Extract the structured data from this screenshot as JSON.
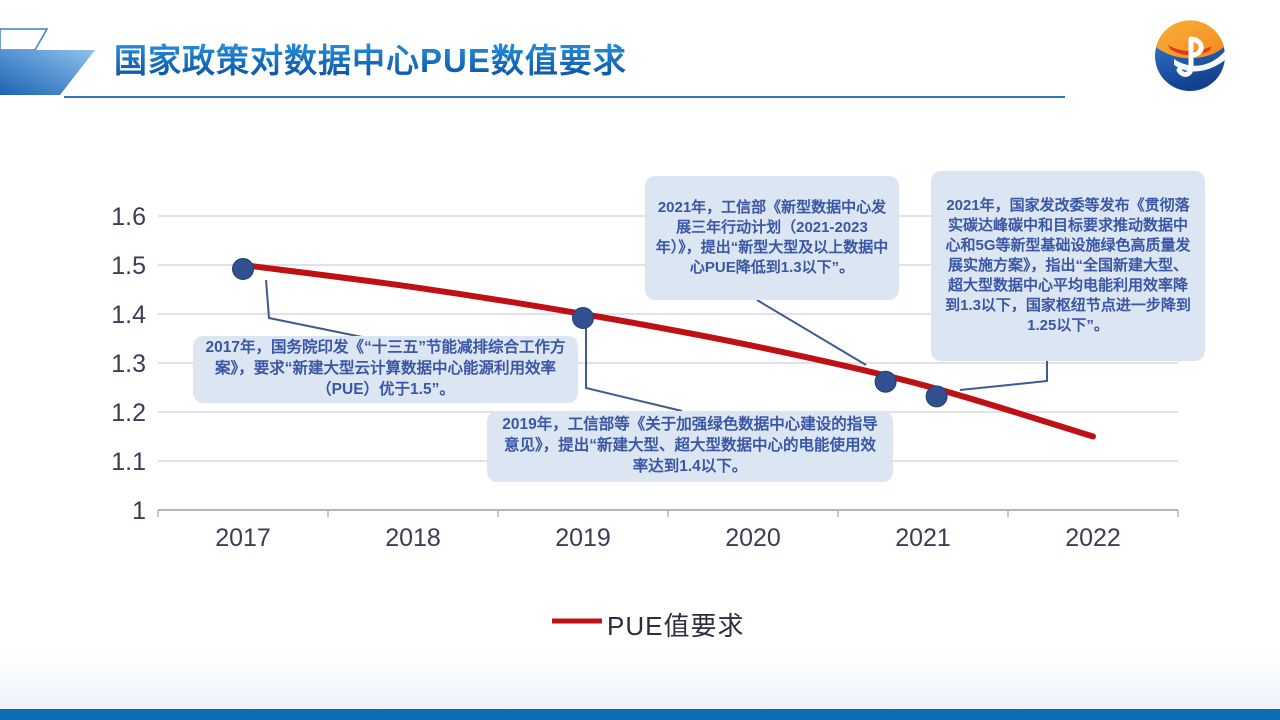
{
  "slide": {
    "title": "国家政策对数据中心PUE数值要求"
  },
  "chart_data": {
    "type": "line",
    "title": "",
    "xlabel": "",
    "ylabel": "",
    "categories": [
      "2017",
      "2018",
      "2019",
      "2020",
      "2021",
      "2022"
    ],
    "series": [
      {
        "name": "PUE值要求",
        "values": [
          1.5,
          1.455,
          1.4,
          1.335,
          1.255,
          1.15
        ]
      }
    ],
    "markers": [
      {
        "year": 2017,
        "value": 1.5
      },
      {
        "year": 2019,
        "value": 1.4
      },
      {
        "year": 2020.78,
        "value": 1.27
      },
      {
        "year": 2021.08,
        "value": 1.24
      }
    ],
    "ylim": [
      1.0,
      1.6
    ],
    "yticks": [
      "1.6",
      "1.5",
      "1.4",
      "1.3",
      "1.2",
      "1.1",
      "1"
    ],
    "grid": true,
    "legend_position": "bottom",
    "line_color": "#bf1016",
    "marker_color": "#30508f",
    "grid_color": "#d9d9de",
    "axis_color": "#b3b3bb"
  },
  "legend": {
    "label": "PUE值要求"
  },
  "callouts": [
    {
      "id": "2017",
      "text": "2017年，国务院印发《“十三五”节能减排综合工作方案》，要求“新建大型云计算数据中心能源利用效率（PUE）优于1.5”。"
    },
    {
      "id": "2019",
      "text": "2019年，工信部等《关于加强绿色数据中心建设的指导意见》，提出“新建大型、超大型数据中心的电能使用效率达到1.4以下。"
    },
    {
      "id": "2021-miit",
      "text": "2021年，工信部《新型数据中心发展三年行动计划（2021-2023年）》，提出“新型大型及以上数据中心PUE降低到1.3以下”。"
    },
    {
      "id": "2021-ndrc",
      "text": "2021年，国家发改委等发布《贯彻落实碳达峰碳中和目标要求推动数据中心和5G等新型基础设施绿色高质量发展实施方案》，指出“全国新建大型、超大型数据中心平均电能利用效率降到1.3以下，国家枢纽节点进一步降到1.25以下”。"
    }
  ],
  "colors": {
    "title_blue": "#0f68bf",
    "callout_bg": "#dce6f2",
    "callout_text": "#3a57a5",
    "footer_bar": "#0a6db6"
  }
}
